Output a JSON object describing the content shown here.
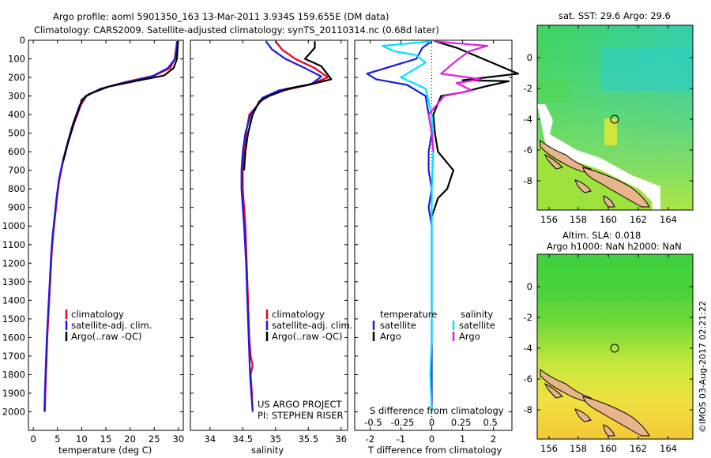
{
  "header": {
    "line1": "Argo profile: aoml 5901350_163 13-Mar-2011 3.934S 159.655E (DM data)",
    "line2": "Climatology: CARS2009. Satellite-adjusted climatology: synTS_20110314.nc (0.68d later)"
  },
  "colors": {
    "climatology": "#e8001c",
    "satellite": "#1a1ae6",
    "argo": "#000000",
    "sal_satellite": "#00e0ff",
    "sal_argo": "#e020e0"
  },
  "chart_data": [
    {
      "type": "line",
      "id": "temperature",
      "xlabel": "temperature (deg C)",
      "xlim": [
        -1,
        31
      ],
      "ylim": [
        0,
        2100
      ],
      "xticks": [
        0,
        5,
        10,
        15,
        20,
        25,
        30
      ],
      "yticks": [
        0,
        100,
        200,
        300,
        400,
        500,
        600,
        700,
        800,
        900,
        1000,
        1100,
        1200,
        1300,
        1400,
        1500,
        1600,
        1700,
        1800,
        1900,
        2000
      ],
      "legend": [
        "climatology",
        "satellite-adj. clim.",
        "Argo(..raw -QC)"
      ],
      "series": [
        {
          "name": "climatology",
          "color": "#e8001c",
          "points": [
            [
              29.7,
              5
            ],
            [
              29.5,
              50
            ],
            [
              29.2,
              100
            ],
            [
              28.3,
              150
            ],
            [
              25,
              190
            ],
            [
              19,
              225
            ],
            [
              14,
              260
            ],
            [
              11,
              300
            ],
            [
              9.8,
              350
            ],
            [
              8.4,
              450
            ],
            [
              7.2,
              550
            ],
            [
              6.2,
              650
            ],
            [
              5.4,
              750
            ],
            [
              4.9,
              850
            ],
            [
              4.5,
              950
            ],
            [
              4.1,
              1050
            ],
            [
              3.8,
              1150
            ],
            [
              3.5,
              1300
            ],
            [
              3.2,
              1450
            ],
            [
              2.9,
              1600
            ],
            [
              2.7,
              1750
            ],
            [
              2.5,
              1900
            ],
            [
              2.4,
              2000
            ]
          ]
        },
        {
          "name": "satellite-adj. clim.",
          "color": "#1a1ae6",
          "points": [
            [
              29.8,
              5
            ],
            [
              29.6,
              50
            ],
            [
              29.3,
              100
            ],
            [
              27.8,
              150
            ],
            [
              24.5,
              195
            ],
            [
              18.5,
              230
            ],
            [
              13.8,
              262
            ],
            [
              10.8,
              300
            ],
            [
              9.6,
              350
            ],
            [
              8.2,
              450
            ],
            [
              7.1,
              550
            ],
            [
              6.1,
              650
            ],
            [
              5.3,
              750
            ],
            [
              4.8,
              850
            ],
            [
              4.4,
              950
            ],
            [
              4.0,
              1050
            ],
            [
              3.7,
              1150
            ],
            [
              3.4,
              1300
            ],
            [
              3.1,
              1450
            ],
            [
              2.8,
              1600
            ],
            [
              2.6,
              1750
            ],
            [
              2.4,
              1900
            ],
            [
              2.3,
              2000
            ]
          ]
        },
        {
          "name": "Argo(..raw -QC)",
          "color": "#000000",
          "points": [
            [
              29.9,
              5
            ],
            [
              29.8,
              50
            ],
            [
              29.7,
              100
            ],
            [
              29,
              150
            ],
            [
              27,
              190
            ],
            [
              21,
              220
            ],
            [
              15.5,
              250
            ],
            [
              11.5,
              290
            ],
            [
              10,
              320
            ],
            [
              9.7,
              350
            ],
            [
              8.3,
              450
            ],
            [
              7.2,
              550
            ],
            [
              6.2,
              650
            ]
          ]
        }
      ]
    },
    {
      "type": "line",
      "id": "salinity",
      "xlabel": "salinity",
      "xlim": [
        33.7,
        36.1
      ],
      "ylim": [
        0,
        2100
      ],
      "xticks": [
        34,
        34.5,
        35,
        35.5,
        36
      ],
      "legend": [
        "climatology",
        "satellite-adj. clim.",
        "Argo(..raw -QC)"
      ],
      "annotation": [
        "US ARGO PROJECT",
        "PI: STEPHEN RISER"
      ],
      "series": [
        {
          "name": "climatology",
          "color": "#e8001c",
          "points": [
            [
              35.0,
              5
            ],
            [
              35.1,
              50
            ],
            [
              35.3,
              100
            ],
            [
              35.6,
              150
            ],
            [
              35.8,
              200
            ],
            [
              35.5,
              240
            ],
            [
              35.0,
              280
            ],
            [
              34.8,
              320
            ],
            [
              34.6,
              400
            ],
            [
              34.55,
              500
            ],
            [
              34.52,
              600
            ],
            [
              34.5,
              700
            ],
            [
              34.5,
              800
            ],
            [
              34.52,
              900
            ],
            [
              34.54,
              1000
            ],
            [
              34.56,
              1200
            ],
            [
              34.58,
              1400
            ],
            [
              34.6,
              1600
            ],
            [
              34.62,
              1700
            ],
            [
              34.65,
              1750
            ],
            [
              34.62,
              1800
            ],
            [
              34.64,
              1900
            ],
            [
              34.65,
              2000
            ]
          ]
        },
        {
          "name": "satellite-adj. clim.",
          "color": "#1a1ae6",
          "points": [
            [
              34.85,
              5
            ],
            [
              34.95,
              50
            ],
            [
              35.15,
              100
            ],
            [
              35.45,
              150
            ],
            [
              35.7,
              195
            ],
            [
              35.55,
              235
            ],
            [
              35.05,
              270
            ],
            [
              34.8,
              310
            ],
            [
              34.62,
              400
            ],
            [
              34.54,
              500
            ],
            [
              34.5,
              600
            ],
            [
              34.48,
              700
            ],
            [
              34.48,
              800
            ],
            [
              34.5,
              900
            ],
            [
              34.52,
              1000
            ],
            [
              34.55,
              1200
            ],
            [
              34.57,
              1400
            ],
            [
              34.59,
              1600
            ],
            [
              34.61,
              1800
            ],
            [
              34.63,
              1900
            ],
            [
              34.65,
              2000
            ]
          ]
        },
        {
          "name": "Argo(..raw -QC)",
          "color": "#000000",
          "points": [
            [
              35.6,
              5
            ],
            [
              35.6,
              40
            ],
            [
              35.55,
              60
            ],
            [
              35.45,
              100
            ],
            [
              35.7,
              140
            ],
            [
              35.85,
              210
            ],
            [
              35.5,
              240
            ],
            [
              35.2,
              260
            ],
            [
              34.9,
              300
            ],
            [
              34.75,
              330
            ],
            [
              34.65,
              400
            ],
            [
              34.58,
              500
            ],
            [
              34.54,
              600
            ],
            [
              34.52,
              700
            ]
          ]
        }
      ]
    },
    {
      "type": "line",
      "id": "differences",
      "xlabel": "T difference from climatology",
      "xlabel_top": "S difference from climatology",
      "xlim": [
        -2.5,
        2.6
      ],
      "ylim": [
        0,
        2100
      ],
      "xticks": [
        -2,
        -1,
        0,
        1,
        2
      ],
      "xticks_top": [
        -0.5,
        -0.25,
        0,
        0.25,
        0.5
      ],
      "legend_headers": [
        "temperature",
        "salinity"
      ],
      "legend": [
        "satellite",
        "Argo",
        "satellite",
        "Argo"
      ],
      "series": [
        {
          "name": "temperature satellite",
          "color": "#1a1ae6",
          "points": [
            [
              0,
              5
            ],
            [
              -0.3,
              40
            ],
            [
              -0.5,
              100
            ],
            [
              -2.1,
              180
            ],
            [
              -1.8,
              210
            ],
            [
              -0.8,
              240
            ],
            [
              -0.2,
              300
            ],
            [
              -0.1,
              400
            ],
            [
              0,
              500
            ],
            [
              -0.1,
              600
            ],
            [
              -0.1,
              700
            ],
            [
              0,
              800
            ],
            [
              -0.1,
              900
            ],
            [
              0,
              1000
            ],
            [
              0,
              1300
            ],
            [
              0,
              1600
            ],
            [
              0,
              1800
            ],
            [
              0,
              2000
            ]
          ]
        },
        {
          "name": "temperature Argo",
          "color": "#000000",
          "points": [
            [
              0.1,
              5
            ],
            [
              0.8,
              40
            ],
            [
              2.8,
              180
            ],
            [
              1.0,
              215
            ],
            [
              2.5,
              220
            ],
            [
              1.7,
              250
            ],
            [
              1.0,
              280
            ],
            [
              0.3,
              300
            ],
            [
              0.05,
              400
            ],
            [
              0.1,
              500
            ],
            [
              0.2,
              600
            ],
            [
              0.7,
              700
            ],
            [
              0.5,
              800
            ],
            [
              0.2,
              850
            ],
            [
              0.1,
              900
            ],
            [
              0,
              950
            ]
          ]
        },
        {
          "name": "salinity satellite",
          "color": "#00e0ff",
          "points": [
            [
              0,
              5
            ],
            [
              -1.6,
              30
            ],
            [
              -1.2,
              60
            ],
            [
              -0.5,
              80
            ],
            [
              -0.2,
              120
            ],
            [
              -1.0,
              200
            ],
            [
              -0.2,
              260
            ],
            [
              0,
              400
            ],
            [
              0.05,
              600
            ],
            [
              0,
              800
            ],
            [
              0,
              1200
            ],
            [
              0,
              1600
            ],
            [
              -0.05,
              1800
            ],
            [
              0,
              2000
            ]
          ]
        },
        {
          "name": "salinity Argo",
          "color": "#e020e0",
          "points": [
            [
              0.05,
              5
            ],
            [
              1.8,
              30
            ],
            [
              1.2,
              60
            ],
            [
              0.8,
              110
            ],
            [
              0.3,
              180
            ],
            [
              1.6,
              210
            ],
            [
              0.8,
              230
            ],
            [
              1.3,
              270
            ],
            [
              0.4,
              300
            ],
            [
              -0.1,
              400
            ],
            [
              0,
              500
            ],
            [
              0.05,
              600
            ]
          ]
        }
      ]
    }
  ],
  "maps": [
    {
      "title": "sat. SST: 29.6 Argo: 29.6",
      "xticks": [
        "156",
        "158",
        "160",
        "162",
        "164"
      ],
      "yticks": [
        "0",
        "-2",
        "-4",
        "-6",
        "-8"
      ]
    },
    {
      "title_line1": "Altim. SLA: 0.018",
      "title_line2": "Argo h1000: NaN h2000: NaN",
      "xticks": [
        "156",
        "158",
        "160",
        "162",
        "164"
      ],
      "yticks": [
        "0",
        "-2",
        "-4",
        "-6",
        "-8"
      ]
    }
  ],
  "footer_stamp": "©IMOS 03-Aug-2017 02:21:22"
}
